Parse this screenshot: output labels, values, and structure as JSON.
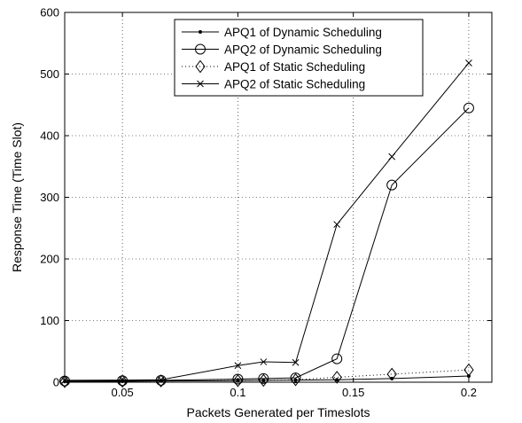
{
  "chart_data": {
    "type": "line",
    "xlabel": "Packets Generated per Timeslots",
    "ylabel": "Response Time (Time Slot)",
    "xlim": [
      0.025,
      0.21
    ],
    "ylim": [
      0,
      600
    ],
    "xticks": [
      0.05,
      0.1,
      0.15,
      0.2
    ],
    "xtick_labels": [
      "0.05",
      "0.1",
      "0.15",
      "0.2"
    ],
    "yticks": [
      0,
      100,
      200,
      300,
      400,
      500,
      600
    ],
    "ytick_labels": [
      "0",
      "100",
      "200",
      "300",
      "400",
      "500",
      "600"
    ],
    "grid": true,
    "legend_position": "top-center",
    "series": [
      {
        "name": "APQ1 of Dynamic Scheduling",
        "marker": "dot",
        "line": "solid",
        "x": [
          0.025,
          0.05,
          0.0667,
          0.1,
          0.1111,
          0.125,
          0.1429,
          0.1667,
          0.2
        ],
        "y": [
          1,
          1.5,
          2,
          2.5,
          3,
          3.5,
          4,
          6,
          10
        ]
      },
      {
        "name": "APQ2 of Dynamic Scheduling",
        "marker": "circle",
        "line": "solid",
        "x": [
          0.025,
          0.05,
          0.0667,
          0.1,
          0.1111,
          0.125,
          0.1429,
          0.1667,
          0.2
        ],
        "y": [
          2,
          2.5,
          3,
          5,
          6,
          7,
          38,
          320,
          445
        ]
      },
      {
        "name": "APQ1 of Static Scheduling",
        "marker": "diamond",
        "line": "dotted",
        "x": [
          0.025,
          0.05,
          0.0667,
          0.1,
          0.1111,
          0.125,
          0.1429,
          0.1667,
          0.2
        ],
        "y": [
          1,
          1.5,
          2,
          2.5,
          3,
          4,
          8,
          13,
          20
        ]
      },
      {
        "name": "APQ2 of Static Scheduling",
        "marker": "x",
        "line": "solid",
        "x": [
          0.025,
          0.05,
          0.0667,
          0.1,
          0.1111,
          0.125,
          0.1429,
          0.1667,
          0.2
        ],
        "y": [
          3,
          3.5,
          4,
          27,
          33,
          32,
          256,
          366,
          518
        ]
      }
    ]
  }
}
